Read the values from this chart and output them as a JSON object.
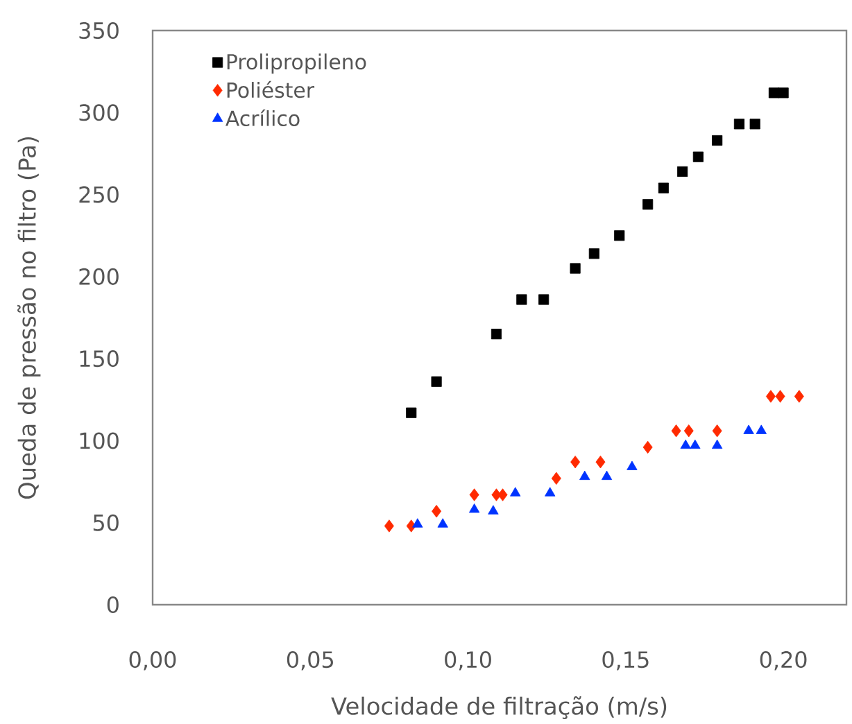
{
  "chart_data": {
    "type": "scatter",
    "xlabel": "Velocidade de filtração (m/s)",
    "ylabel": "Queda de pressão no filtro (Pa)",
    "xlim": [
      0,
      0.22
    ],
    "ylim": [
      0,
      350
    ],
    "xticks": [
      {
        "value": 0,
        "label": "0,00"
      },
      {
        "value": 0.05,
        "label": "0,05"
      },
      {
        "value": 0.1,
        "label": "0,10"
      },
      {
        "value": 0.15,
        "label": "0,15"
      },
      {
        "value": 0.2,
        "label": "0,20"
      }
    ],
    "yticks": [
      0,
      50,
      100,
      150,
      200,
      250,
      300,
      350
    ],
    "grid": false,
    "legend": "top left",
    "series": [
      {
        "name": "Prolipropileno",
        "color": "#000000",
        "marker": "square",
        "x": [
          0.082,
          0.09,
          0.109,
          0.117,
          0.124,
          0.134,
          0.14,
          0.148,
          0.157,
          0.162,
          0.168,
          0.173,
          0.179,
          0.186,
          0.191,
          0.197,
          0.2
        ],
        "values": [
          117,
          136,
          165,
          186,
          186,
          205,
          214,
          225,
          244,
          254,
          264,
          273,
          283,
          293,
          293,
          312,
          312
        ]
      },
      {
        "name": "Poliéster",
        "color": "#ff2a00",
        "marker": "diamond",
        "x": [
          0.075,
          0.082,
          0.09,
          0.102,
          0.109,
          0.111,
          0.128,
          0.134,
          0.142,
          0.157,
          0.166,
          0.17,
          0.179,
          0.196,
          0.199,
          0.205
        ],
        "values": [
          48,
          48,
          57,
          67,
          67,
          67,
          77,
          87,
          87,
          96,
          106,
          106,
          106,
          127,
          127,
          127
        ]
      },
      {
        "name": "Acrílico",
        "color": "#0033ff",
        "marker": "triangle",
        "x": [
          0.084,
          0.092,
          0.102,
          0.108,
          0.115,
          0.126,
          0.137,
          0.144,
          0.152,
          0.169,
          0.172,
          0.179,
          0.189,
          0.193
        ],
        "values": [
          49,
          49,
          58,
          57,
          68,
          68,
          78,
          78,
          84,
          97,
          97,
          97,
          106,
          106
        ]
      }
    ]
  }
}
